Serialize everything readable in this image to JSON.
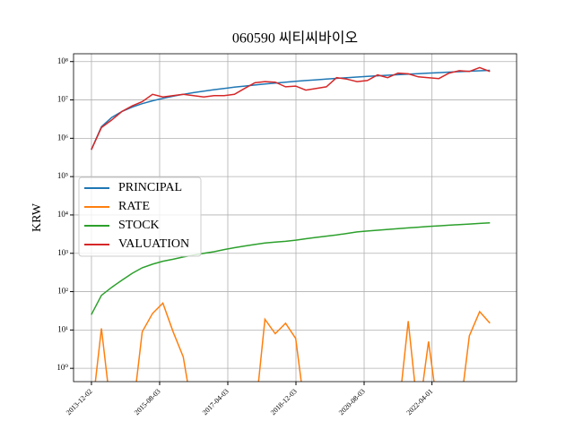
{
  "chart_data": {
    "type": "line",
    "title": "060590 씨티씨바이오",
    "ylabel": "KRW",
    "log_y": true,
    "grid": true,
    "legend": "center left",
    "x": [
      "2013-12-01",
      "2014-03-01",
      "2014-06-01",
      "2014-09-01",
      "2014-12-01",
      "2015-03-01",
      "2015-06-01",
      "2015-09-01",
      "2015-12-01",
      "2016-03-01",
      "2016-06-01",
      "2016-09-01",
      "2016-12-01",
      "2017-03-01",
      "2017-06-01",
      "2017-09-01",
      "2017-12-01",
      "2018-03-01",
      "2018-06-01",
      "2018-09-01",
      "2018-12-01",
      "2019-03-01",
      "2019-06-01",
      "2019-09-01",
      "2019-12-01",
      "2020-03-01",
      "2020-06-01",
      "2020-09-01",
      "2020-12-01",
      "2021-03-01",
      "2021-06-01",
      "2021-09-01",
      "2021-12-01",
      "2022-03-01",
      "2022-06-01",
      "2022-09-01",
      "2022-12-01",
      "2023-03-01",
      "2023-06-01",
      "2023-09-01"
    ],
    "series": [
      {
        "name": "PRINCIPAL",
        "color": "#1f77b4",
        "values": [
          500000,
          2000000,
          3500000,
          5000000,
          6500000,
          8000000,
          9500000,
          11000000,
          12500000,
          14000000,
          15500000,
          17000000,
          18500000,
          20000000,
          21500000,
          23000000,
          24500000,
          26000000,
          27500000,
          29000000,
          30500000,
          32000000,
          33500000,
          35000000,
          36500000,
          38000000,
          39500000,
          41000000,
          42500000,
          44000000,
          45500000,
          47000000,
          48500000,
          50000000,
          51500000,
          53000000,
          54500000,
          56000000,
          57500000,
          59000000
        ]
      },
      {
        "name": "RATE",
        "color": "#ff7f0e",
        "values": [
          0,
          11,
          0,
          0,
          0,
          9,
          27,
          50,
          9,
          2,
          0,
          0,
          0,
          0,
          0,
          0,
          0,
          19,
          8,
          15,
          6,
          0,
          0,
          0,
          0,
          0,
          0,
          0,
          0,
          0,
          0,
          17,
          0,
          5,
          0,
          0,
          0,
          7,
          30,
          15
        ]
      },
      {
        "name": "STOCK",
        "color": "#2ca02c",
        "values": [
          25,
          80,
          130,
          200,
          300,
          420,
          520,
          620,
          700,
          800,
          900,
          1000,
          1100,
          1250,
          1400,
          1550,
          1700,
          1850,
          1950,
          2050,
          2200,
          2400,
          2600,
          2800,
          3000,
          3300,
          3600,
          3800,
          4000,
          4200,
          4400,
          4600,
          4800,
          5000,
          5200,
          5400,
          5600,
          5800,
          6000,
          6200
        ]
      },
      {
        "name": "VALUATION",
        "color": "#d62728",
        "values": [
          500000,
          1900000,
          3000000,
          5000000,
          7000000,
          9000000,
          14000000,
          12000000,
          13000000,
          14000000,
          13000000,
          12000000,
          13000000,
          13000000,
          14000000,
          20000000,
          28000000,
          30000000,
          29000000,
          22000000,
          23000000,
          18000000,
          20000000,
          22000000,
          38000000,
          35000000,
          30000000,
          32000000,
          45000000,
          38000000,
          50000000,
          48000000,
          40000000,
          38000000,
          36000000,
          50000000,
          58000000,
          55000000,
          70000000,
          55000000
        ]
      }
    ],
    "xlim": [
      "2013-06-25",
      "2024-04-26"
    ],
    "xticks": [
      "2013-12-02",
      "2015-08-03",
      "2017-04-03",
      "2018-12-03",
      "2020-08-03",
      "2022-04-01"
    ],
    "ylim": [
      0.45,
      160000000
    ],
    "yticks": [
      {
        "value": 1,
        "label": "10⁰"
      },
      {
        "value": 10,
        "label": "10¹"
      },
      {
        "value": 100,
        "label": "10²"
      },
      {
        "value": 1000,
        "label": "10³"
      },
      {
        "value": 10000,
        "label": "10⁴"
      },
      {
        "value": 100000,
        "label": "10⁵"
      },
      {
        "value": 1000000,
        "label": "10⁶"
      },
      {
        "value": 10000000,
        "label": "10⁷"
      },
      {
        "value": 100000000,
        "label": "10⁸"
      }
    ]
  }
}
